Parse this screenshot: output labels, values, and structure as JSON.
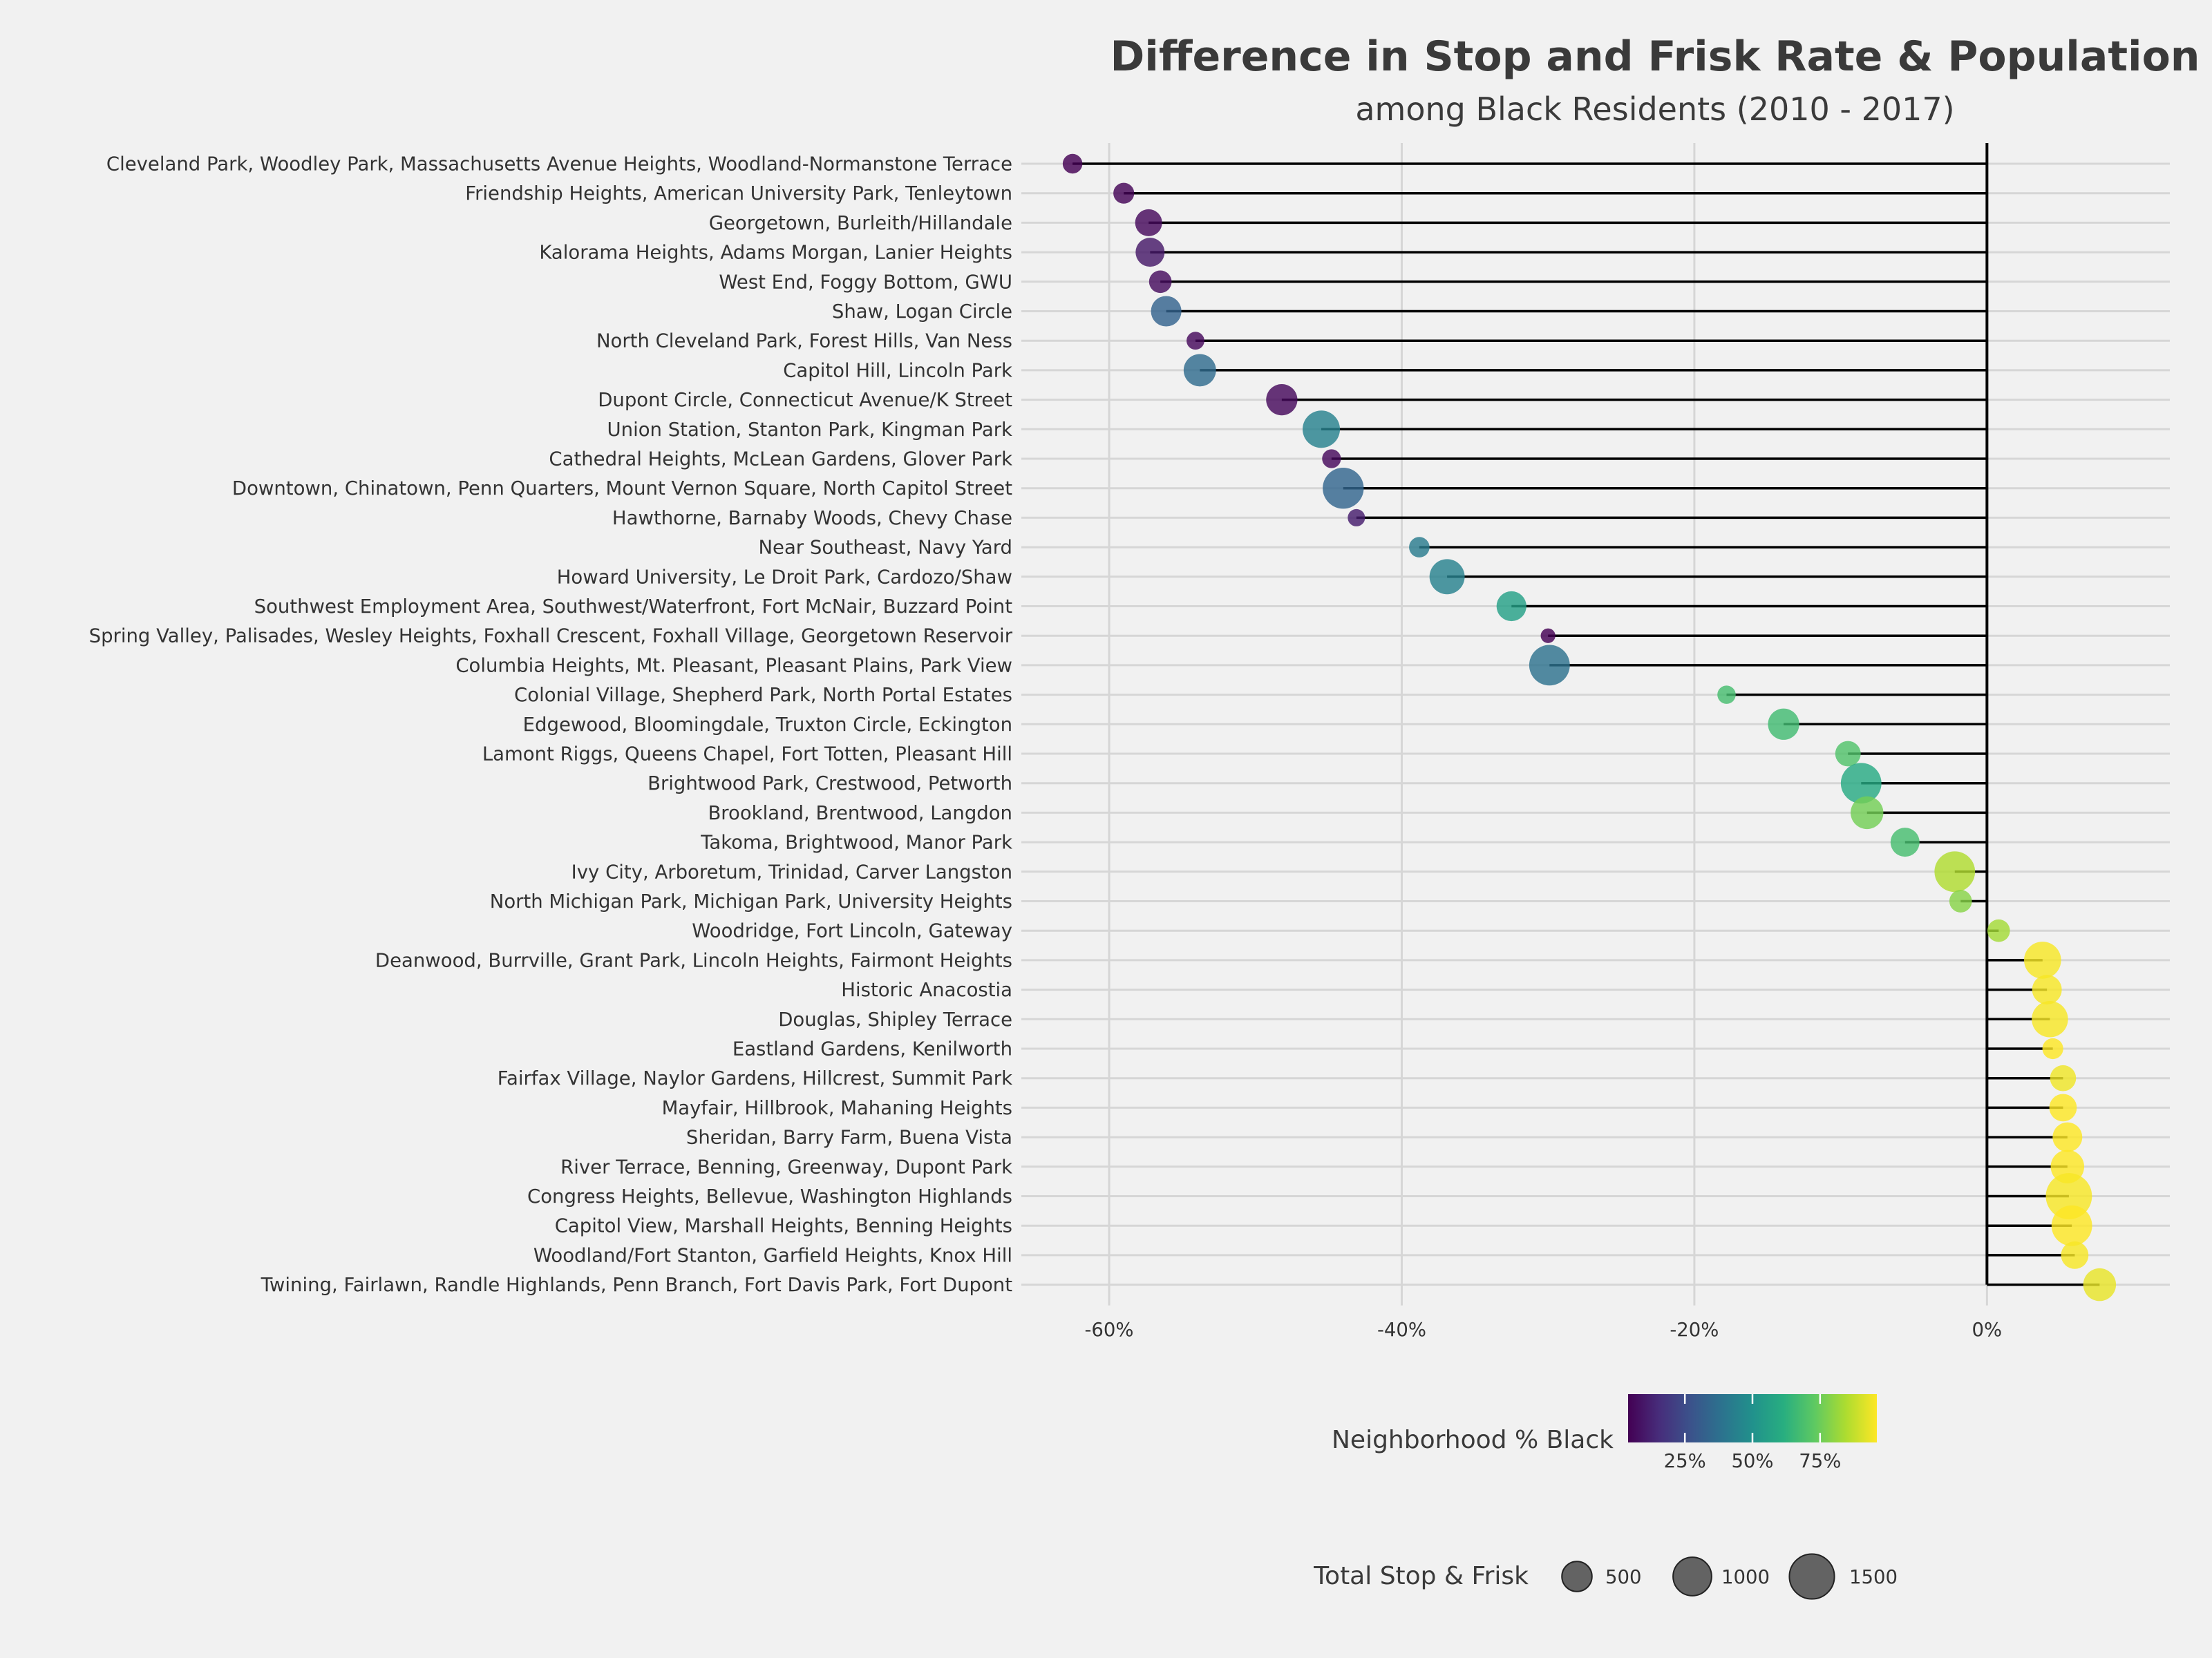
{
  "chart_data": {
    "type": "lollipop",
    "title": "Difference in Stop and Frisk Rate & Population",
    "subtitle": "among Black Residents (2010 - 2017)",
    "xlim": [
      -66,
      12.5
    ],
    "x_ticks": [
      {
        "value": -60,
        "label": "-60%"
      },
      {
        "value": -40,
        "label": "-40%"
      },
      {
        "value": -20,
        "label": "-20%"
      },
      {
        "value": 0,
        "label": "0%"
      }
    ],
    "baseline": 0,
    "points": [
      {
        "neighborhood": "Cleveland Park, Woodley Park, Massachusetts Avenue Heights, Woodland-Normanstone Terrace",
        "diff": -62.5,
        "pct_black": 4,
        "total": 120
      },
      {
        "neighborhood": "Friendship Heights, American University Park, Tenleytown",
        "diff": -59.0,
        "pct_black": 5,
        "total": 150
      },
      {
        "neighborhood": "Georgetown, Burleith/Hillandale",
        "diff": -57.3,
        "pct_black": 6,
        "total": 360
      },
      {
        "neighborhood": "Kalorama Heights, Adams Morgan, Lanier Heights",
        "diff": -57.2,
        "pct_black": 10,
        "total": 450
      },
      {
        "neighborhood": "West End, Foggy Bottom, GWU",
        "diff": -56.5,
        "pct_black": 7,
        "total": 200
      },
      {
        "neighborhood": "Shaw, Logan Circle",
        "diff": -56.1,
        "pct_black": 33,
        "total": 520
      },
      {
        "neighborhood": "North Cleveland Park, Forest Hills, Van Ness",
        "diff": -54.1,
        "pct_black": 6,
        "total": 80
      },
      {
        "neighborhood": "Capitol Hill, Lincoln Park",
        "diff": -53.8,
        "pct_black": 36,
        "total": 620
      },
      {
        "neighborhood": "Dupont Circle, Connecticut Avenue/K Street",
        "diff": -48.2,
        "pct_black": 6,
        "total": 560
      },
      {
        "neighborhood": "Union Station, Stanton Park, Kingman Park",
        "diff": -45.5,
        "pct_black": 44,
        "total": 920
      },
      {
        "neighborhood": "Cathedral Heights, McLean Gardens, Glover Park",
        "diff": -44.8,
        "pct_black": 6,
        "total": 100
      },
      {
        "neighborhood": "Downtown, Chinatown, Penn Quarters, Mount Vernon Square, North Capitol Street",
        "diff": -44.0,
        "pct_black": 34,
        "total": 1180
      },
      {
        "neighborhood": "Hawthorne, Barnaby Woods, Chevy Chase",
        "diff": -43.1,
        "pct_black": 11,
        "total": 70
      },
      {
        "neighborhood": "Near Southeast, Navy Yard",
        "diff": -38.8,
        "pct_black": 42,
        "total": 140
      },
      {
        "neighborhood": "Howard University, Le Droit Park, Cardozo/Shaw",
        "diff": -36.9,
        "pct_black": 44,
        "total": 780
      },
      {
        "neighborhood": "Southwest Employment Area, Southwest/Waterfront, Fort McNair, Buzzard Point",
        "diff": -32.5,
        "pct_black": 56,
        "total": 490
      },
      {
        "neighborhood": "Spring Valley, Palisades, Wesley Heights, Foxhall Crescent, Foxhall Village, Georgetown Reservoir",
        "diff": -30.0,
        "pct_black": 4,
        "total": 30
      },
      {
        "neighborhood": "Columbia Heights, Mt. Pleasant, Pleasant Plains, Park View",
        "diff": -29.9,
        "pct_black": 38,
        "total": 1150
      },
      {
        "neighborhood": "Colonial Village, Shepherd Park, North Portal Estates",
        "diff": -17.8,
        "pct_black": 68,
        "total": 90
      },
      {
        "neighborhood": "Edgewood, Bloomingdale, Truxton Circle, Eckington",
        "diff": -13.9,
        "pct_black": 67,
        "total": 560
      },
      {
        "neighborhood": "Lamont Riggs, Queens Chapel, Fort Totten, Pleasant Hill",
        "diff": -9.5,
        "pct_black": 70,
        "total": 300
      },
      {
        "neighborhood": "Brightwood Park, Crestwood, Petworth",
        "diff": -8.6,
        "pct_black": 60,
        "total": 1150
      },
      {
        "neighborhood": "Brookland, Brentwood, Langdon",
        "diff": -8.2,
        "pct_black": 76,
        "total": 640
      },
      {
        "neighborhood": "Takoma, Brightwood, Manor Park",
        "diff": -5.6,
        "pct_black": 68,
        "total": 450
      },
      {
        "neighborhood": "Ivy City, Arboretum, Trinidad, Carver Langston",
        "diff": -2.2,
        "pct_black": 85,
        "total": 1150
      },
      {
        "neighborhood": "North Michigan Park, Michigan Park, University Heights",
        "diff": -1.8,
        "pct_black": 79,
        "total": 200
      },
      {
        "neighborhood": "Woodridge, Fort Lincoln, Gateway",
        "diff": 0.8,
        "pct_black": 83,
        "total": 200
      },
      {
        "neighborhood": "Deanwood, Burrville, Grant Park, Lincoln Heights, Fairmont Heights",
        "diff": 3.8,
        "pct_black": 95,
        "total": 900
      },
      {
        "neighborhood": "Historic Anacostia",
        "diff": 4.1,
        "pct_black": 95,
        "total": 480
      },
      {
        "neighborhood": "Douglas, Shipley Terrace",
        "diff": 4.3,
        "pct_black": 95,
        "total": 850
      },
      {
        "neighborhood": "Eastland Gardens, Kenilworth",
        "diff": 4.5,
        "pct_black": 96,
        "total": 150
      },
      {
        "neighborhood": "Fairfax Village, Naylor Gardens, Hillcrest, Summit Park",
        "diff": 5.2,
        "pct_black": 94,
        "total": 320
      },
      {
        "neighborhood": "Mayfair, Hillbrook, Mahaning Heights",
        "diff": 5.2,
        "pct_black": 96,
        "total": 380
      },
      {
        "neighborhood": "Sheridan, Barry Farm, Buena Vista",
        "diff": 5.5,
        "pct_black": 96,
        "total": 480
      },
      {
        "neighborhood": "River Terrace, Benning, Greenway, Dupont Park",
        "diff": 5.5,
        "pct_black": 96,
        "total": 680
      },
      {
        "neighborhood": "Congress Heights, Bellevue, Washington Highlands",
        "diff": 5.6,
        "pct_black": 95,
        "total": 1600
      },
      {
        "neighborhood": "Capitol View, Marshall Heights, Benning Heights",
        "diff": 5.8,
        "pct_black": 96,
        "total": 1150
      },
      {
        "neighborhood": "Woodland/Fort Stanton, Garfield Heights, Knox Hill",
        "diff": 6.0,
        "pct_black": 95,
        "total": 380
      },
      {
        "neighborhood": "Twining, Fairlawn, Randle Highlands, Penn Branch, Fort Davis Park, Fort Dupont",
        "diff": 7.7,
        "pct_black": 93,
        "total": 640
      }
    ],
    "color_legend": {
      "title": "Neighborhood % Black",
      "range": [
        4,
        96
      ],
      "ticks": [
        {
          "value": 25,
          "label": "25%"
        },
        {
          "value": 50,
          "label": "50%"
        },
        {
          "value": 75,
          "label": "75%"
        }
      ],
      "colormap": "viridis"
    },
    "size_legend": {
      "title": "Total Stop & Frisk",
      "entries": [
        {
          "value": 500,
          "label": "500"
        },
        {
          "value": 1000,
          "label": "1000"
        },
        {
          "value": 1500,
          "label": "1500"
        }
      ]
    }
  }
}
